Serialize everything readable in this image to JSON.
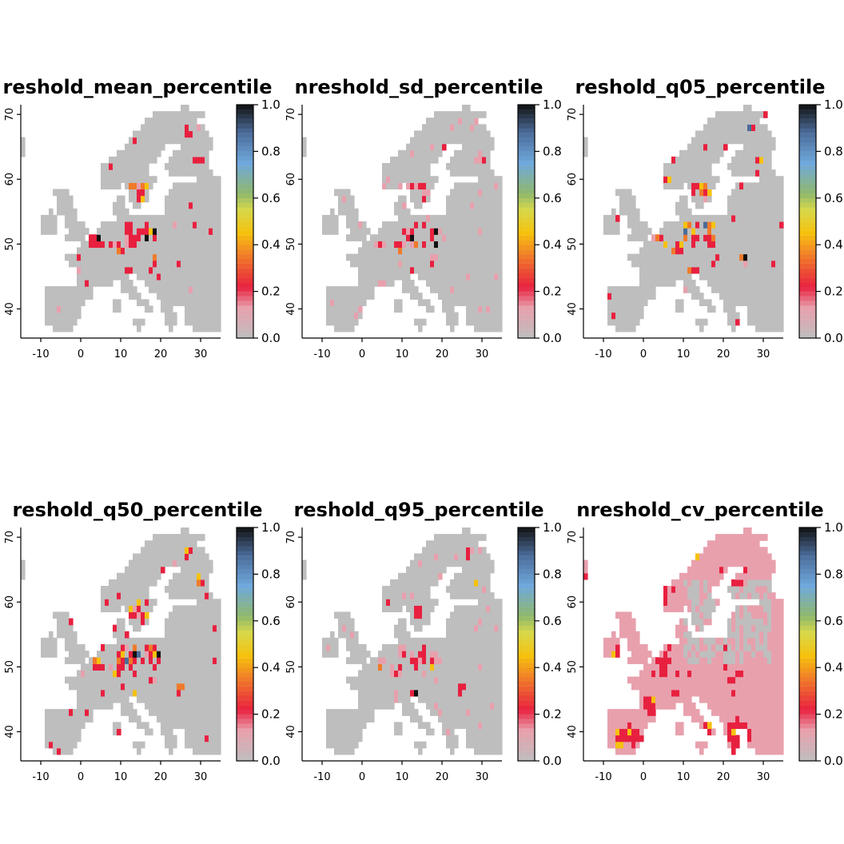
{
  "figure": {
    "panels": [
      {
        "title": "reshold_mean_percentile",
        "style": "sparse",
        "seed": 11
      },
      {
        "title": "nreshold_sd_percentile",
        "style": "faint",
        "seed": 23
      },
      {
        "title": "reshold_q05_percentile",
        "style": "sparse",
        "seed": 37
      },
      {
        "title": "reshold_q50_percentile",
        "style": "sparse",
        "seed": 41
      },
      {
        "title": "reshold_q95_percentile",
        "style": "faint",
        "seed": 53
      },
      {
        "title": "nreshold_cv_percentile",
        "style": "dense",
        "seed": 67
      }
    ],
    "x_ticks": [
      "-10",
      "0",
      "10",
      "20",
      "30"
    ],
    "y_ticks": [
      "40",
      "50",
      "60",
      "70"
    ],
    "colorbar_ticks": [
      "0.0",
      "0.2",
      "0.4",
      "0.6",
      "0.8",
      "1.0"
    ],
    "colors": {
      "land": "#bebebe",
      "palette": [
        "#bebebe",
        "#e8a0ad",
        "#e8203f",
        "#f07a2a",
        "#f6c10d",
        "#d6d84a",
        "#8fb86b",
        "#6fa8dc",
        "#4b6c9a",
        "#111111"
      ]
    }
  },
  "chart_data": {
    "type": "heatmap",
    "lon_range": [
      -15,
      35
    ],
    "lat_range": [
      35.5,
      71.5
    ],
    "value_range": [
      0.0,
      1.0
    ]
  }
}
